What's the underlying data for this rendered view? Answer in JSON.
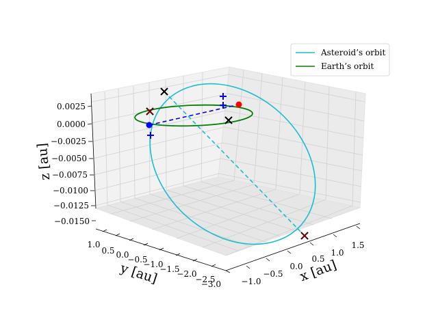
{
  "chart_data": {
    "type": "line3d",
    "title": "",
    "xlabel": "x [au]",
    "ylabel": "y [au]",
    "zlabel": "z [au]",
    "xticks": [
      "−1.0",
      "−0.5",
      "0.0",
      "0.5",
      "1.0",
      "1.5"
    ],
    "yticks": [
      "1.0",
      "0.5",
      "0.0",
      "−0.5",
      "−1.0",
      "−1.5",
      "−2.0",
      "−2.5",
      "−3.0"
    ],
    "zticks": [
      "0.0025",
      "0.0000",
      "−0.0025",
      "−0.0050",
      "−0.0075",
      "−0.0100",
      "−0.0125",
      "−0.0150"
    ],
    "grid": true,
    "legend_position": "top-right",
    "series": [
      {
        "name": "Asteroid’s orbit",
        "color": "#17becf",
        "style": "solid"
      },
      {
        "name": "Earth’s orbit",
        "color": "#008000",
        "style": "solid"
      }
    ],
    "points": [
      {
        "kind": "dot",
        "color": "#ff0000",
        "x": 1.0,
        "y": 0.0,
        "z": 0.0
      },
      {
        "kind": "dot",
        "color": "#0000ff",
        "x": -1.0,
        "y": 0.0,
        "z": 0.0
      }
    ]
  }
}
